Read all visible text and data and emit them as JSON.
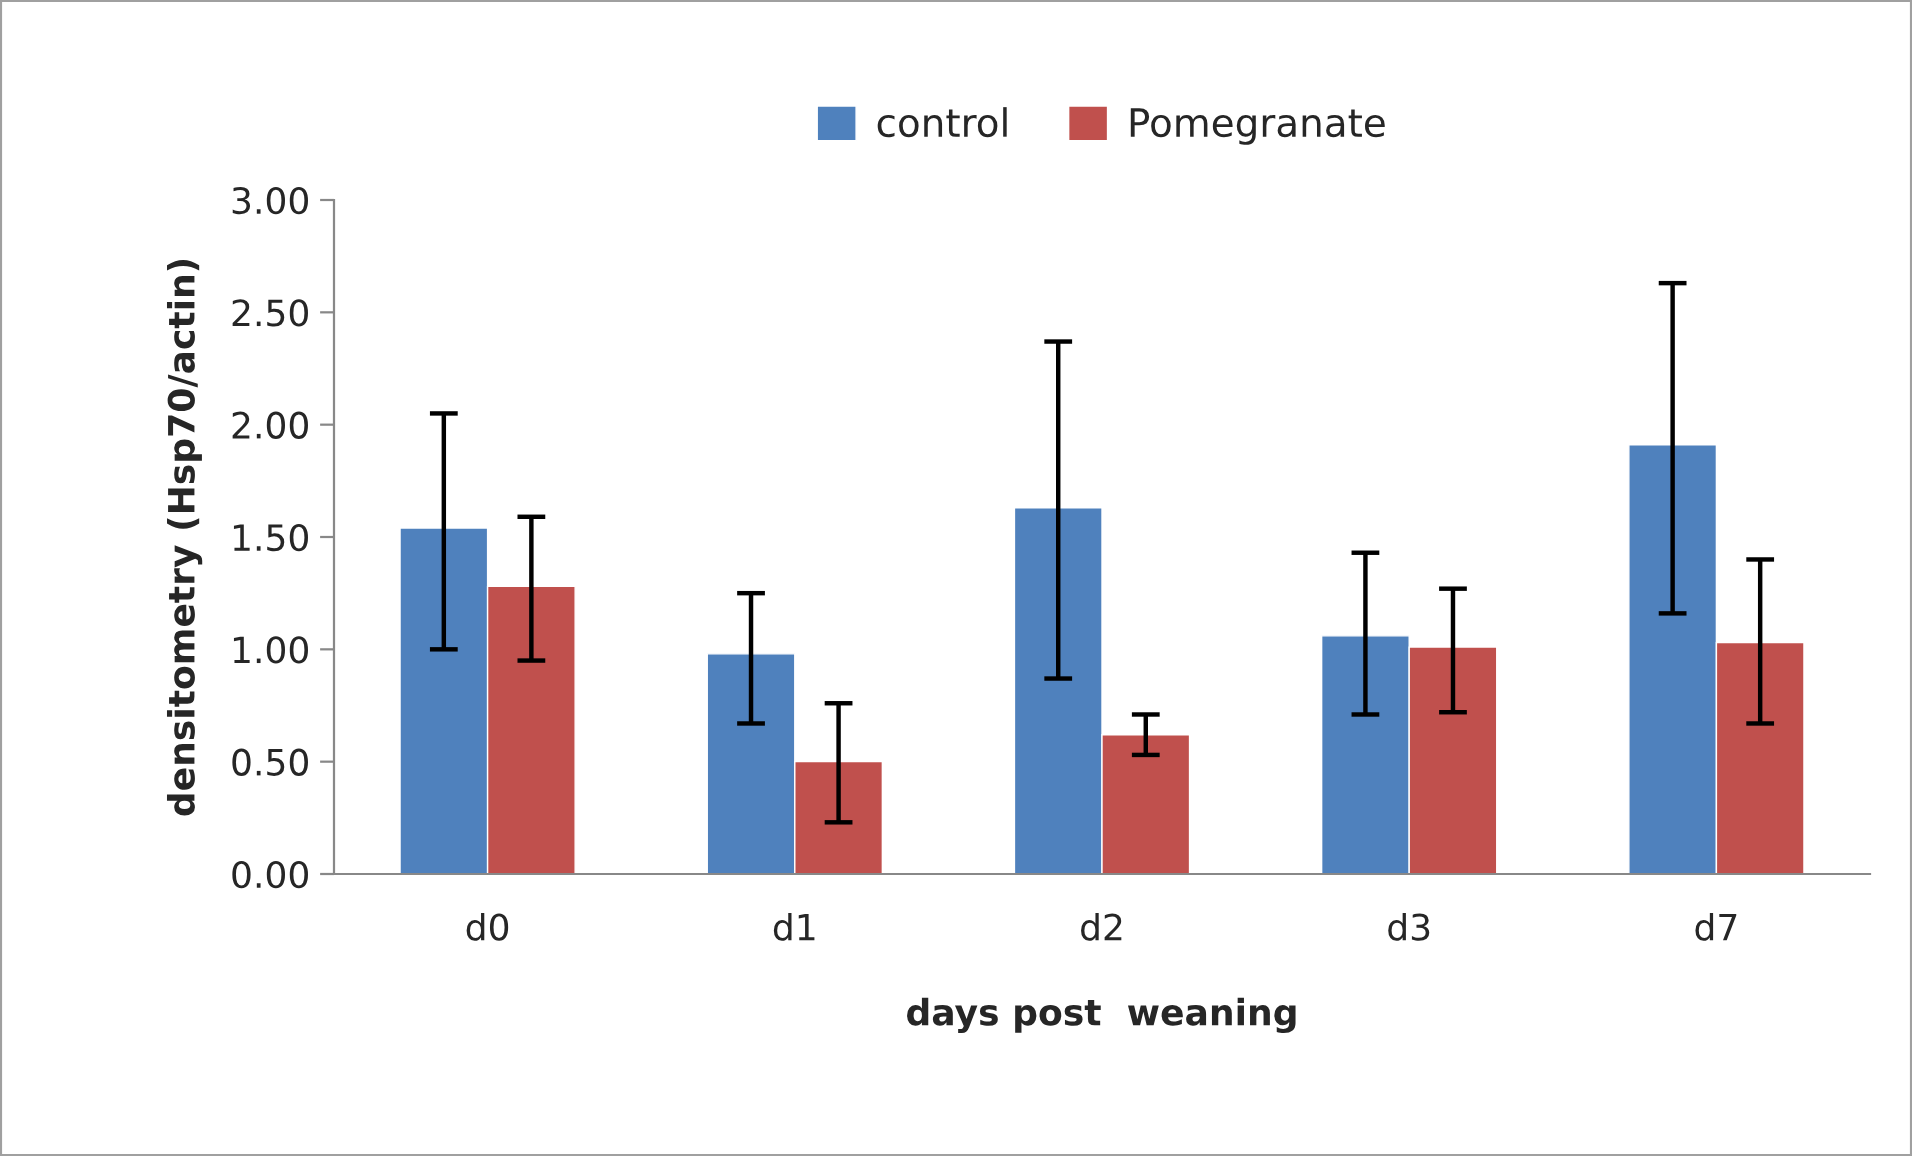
{
  "chart_data": {
    "type": "bar",
    "xlabel": "days post  weaning",
    "ylabel": "densitometry (Hsp70/actin)",
    "categories": [
      "d0",
      "d1",
      "d2",
      "d3",
      "d7"
    ],
    "series": [
      {
        "name": "control",
        "color": "#4f81bd",
        "values": [
          1.54,
          0.98,
          1.63,
          1.06,
          1.91
        ],
        "errors": [
          [
            1.0,
            2.05
          ],
          [
            0.67,
            1.25
          ],
          [
            0.87,
            2.37
          ],
          [
            0.71,
            1.43
          ],
          [
            1.16,
            2.63
          ]
        ]
      },
      {
        "name": "Pomegranate",
        "color": "#c0504d",
        "values": [
          1.28,
          0.5,
          0.62,
          1.01,
          1.03
        ],
        "errors": [
          [
            0.95,
            1.59
          ],
          [
            0.23,
            0.76
          ],
          [
            0.53,
            0.71
          ],
          [
            0.72,
            1.27
          ],
          [
            0.67,
            1.4
          ]
        ]
      }
    ],
    "ylim": [
      0,
      3
    ],
    "yticks": [
      {
        "value": 0,
        "label": "0.00"
      },
      {
        "value": 0.5,
        "label": "0.50"
      },
      {
        "value": 1,
        "label": "1.00"
      },
      {
        "value": 1.5,
        "label": "1.50"
      },
      {
        "value": 2,
        "label": "2.00"
      },
      {
        "value": 2.5,
        "label": "2.50"
      },
      {
        "value": 3,
        "label": "3.00"
      }
    ],
    "grid": false,
    "legend": "top"
  }
}
